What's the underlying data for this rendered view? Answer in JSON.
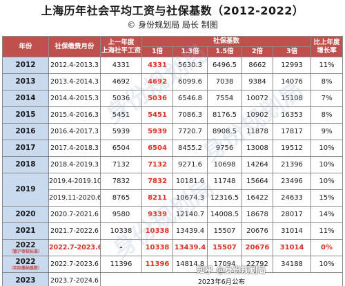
{
  "header": {
    "title": "上海历年社会平均工资与社保基数（2012-2022）",
    "subtitle": "© 身份规划局 局长 制图"
  },
  "table": {
    "headers": {
      "year": "年份",
      "period": "社保缴费月份",
      "prev_wage_line1": "上一年度",
      "prev_wage_line2": "上海社平工资",
      "base_group": "社保基数",
      "m1": "1倍",
      "m13": "1.3倍",
      "m15": "1.5倍",
      "m2": "2倍",
      "m3": "3倍",
      "growth_line1": "比上年度",
      "growth_line2": "增长率"
    },
    "rows": [
      {
        "year": "2012",
        "period": "2012.4-2013.3",
        "wage": "4331",
        "b1": "4331",
        "b13": "5630.3",
        "b15": "6496.5",
        "b2": "8662",
        "b3": "12993",
        "growth": "11%"
      },
      {
        "year": "2013",
        "period": "2013.4-2014.3",
        "wage": "4692",
        "b1": "4692",
        "b13": "6099.6",
        "b15": "7038",
        "b2": "9384",
        "b3": "14076",
        "growth": "8%"
      },
      {
        "year": "2014",
        "period": "2014.4-2015.3",
        "wage": "5036",
        "b1": "5036",
        "b13": "6546.8",
        "b15": "7554",
        "b2": "10072",
        "b3": "15108",
        "growth": "7%"
      },
      {
        "year": "2015",
        "period": "2015.4-2016.3",
        "wage": "5451",
        "b1": "5451",
        "b13": "7086.3",
        "b15": "8176.5",
        "b2": "10902",
        "b3": "16353",
        "growth": "8%"
      },
      {
        "year": "2016",
        "period": "2016.4-2017.3",
        "wage": "5939",
        "b1": "5939",
        "b13": "7720.7",
        "b15": "8908.5",
        "b2": "11878",
        "b3": "17817",
        "growth": "9%"
      },
      {
        "year": "2017",
        "period": "2017.4-2018.3",
        "wage": "6504",
        "b1": "6504",
        "b13": "8455.2",
        "b15": "9756",
        "b2": "13008",
        "b3": "19512",
        "growth": "10%"
      },
      {
        "year": "2018",
        "period": "2018.4-2019.3",
        "wage": "7132",
        "b1": "7132",
        "b13": "9271.6",
        "b15": "10698",
        "b2": "14264",
        "b3": "21396",
        "growth": "10%"
      }
    ],
    "year2019": {
      "year": "2019",
      "a": {
        "period": "2019.4-2019.10",
        "wage": "7832",
        "b1": "7832",
        "b13": "10181.6",
        "b15": "11748",
        "b2": "15664",
        "b3": "23496",
        "growth": "10%"
      },
      "b": {
        "period": "2019.11-2020.6",
        "wage": "8765",
        "b1": "8211",
        "b13": "10674.3",
        "b15": "12316.5",
        "b2": "16422",
        "b3": "24633",
        "growth": "15%"
      }
    },
    "rows2": [
      {
        "year": "2020",
        "period": "2020.7-2021.6",
        "wage": "9580",
        "b1": "9339",
        "b13": "12140.7",
        "b15": "14008.5",
        "b2": "18678",
        "b3": "28017",
        "growth": "14%"
      },
      {
        "year": "2021",
        "period": "2021.7-2022.6",
        "wage": "10338",
        "b1": "10338",
        "b13": "13439.4",
        "b15": "15507",
        "b2": "20676",
        "b3": "31014",
        "growth": "11%"
      }
    ],
    "row2022a": {
      "year": "2022",
      "year_sub": "（暂沪审核标准）",
      "period": "2022.7-2023.6",
      "wage": "-",
      "b1": "10338",
      "b13": "13439.4",
      "b15": "15507",
      "b2": "20676",
      "b3": "31014",
      "growth": "0%"
    },
    "row2022b": {
      "year": "2022",
      "year_sub": "（实际缴纳基数）",
      "period": "2022.7-2023.6",
      "wage": "11396",
      "b1": "11396",
      "b13": "14814.8",
      "b15": "17094",
      "b2": "22792",
      "b3": "34188",
      "growth": "10%"
    },
    "row2023": {
      "year": "2023",
      "period": "2023.7-2024.6",
      "note": "2023年6月公布"
    }
  },
  "watermark": "知乎 @身份规划局"
}
